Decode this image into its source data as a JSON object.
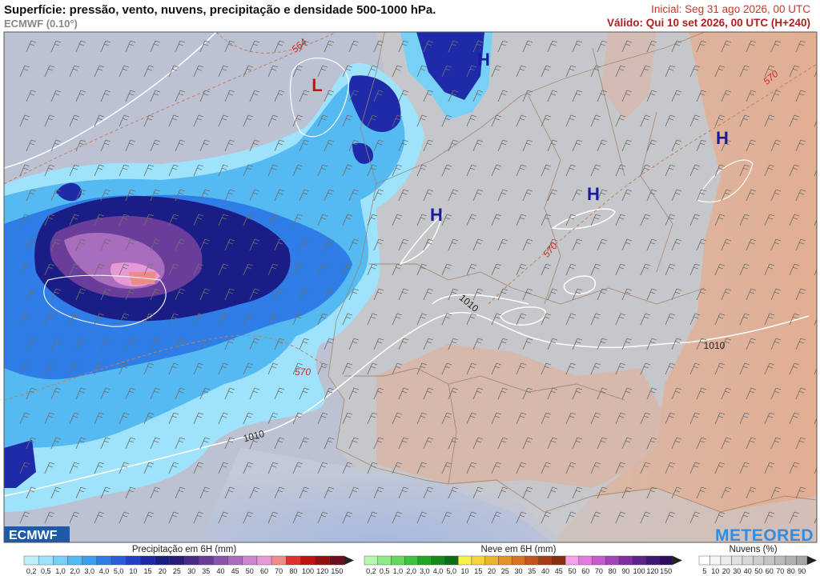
{
  "header": {
    "title": "Superfície: pressão, vento, nuvens, precipitação e densidade 500-1000 hPa.",
    "subtitle": "ECMWF (0.10°)",
    "initial": "Inicial: Seg 31 ago 2026, 00 UTC",
    "valid": "Válido: Qui 10 set 2026, 00 UTC (H+240)"
  },
  "map": {
    "pressure_centers": [
      "H",
      "H",
      "H",
      "H",
      "L"
    ],
    "isoline_labels": [
      "564",
      "570",
      "570",
      "570",
      "1010",
      "1010",
      "1010"
    ],
    "logos": [
      "ECMWF",
      "METEORED"
    ]
  },
  "legends": [
    {
      "title": "Precipitação em 6H (mm)",
      "labels": [
        "0,2",
        "0,5",
        "1,0",
        "2,0",
        "3,0",
        "4,0",
        "5,0",
        "10",
        "15",
        "20",
        "25",
        "30",
        "35",
        "40",
        "45",
        "50",
        "60",
        "70",
        "80",
        "100",
        "120",
        "150"
      ],
      "colors": [
        "#bfeffd",
        "#9ee3fb",
        "#77d1f7",
        "#55b9f2",
        "#3c9ced",
        "#2f7de6",
        "#2a5fd9",
        "#2540c4",
        "#1f2aa8",
        "#1b1d86",
        "#2b1b78",
        "#4a2b8a",
        "#6b3d9a",
        "#8a55ab",
        "#a86dbc",
        "#c987cc",
        "#e59ad6",
        "#f08a8a",
        "#e03030",
        "#c01414",
        "#941010",
        "#6a1020"
      ]
    },
    {
      "title": "Neve em 6H (mm)",
      "labels": [
        "0,2",
        "0,5",
        "1,0",
        "2,0",
        "3,0",
        "4,0",
        "5,0",
        "10",
        "15",
        "20",
        "25",
        "30",
        "35",
        "40",
        "45",
        "50",
        "60",
        "70",
        "80",
        "90",
        "100",
        "120",
        "150"
      ],
      "colors": [
        "#b7f5b0",
        "#8fe88a",
        "#63d85e",
        "#3cc43a",
        "#22a625",
        "#178a1c",
        "#0f6d15",
        "#f7f24a",
        "#f4d43a",
        "#efb42e",
        "#e59326",
        "#d67220",
        "#c2561a",
        "#a63f16",
        "#8a2d12",
        "#f2a4ea",
        "#e07ddc",
        "#c55ccb",
        "#a444b9",
        "#8030a4",
        "#5e228c",
        "#401878",
        "#2a0f5e"
      ]
    },
    {
      "title": "Nuvens (%)",
      "labels": [
        "5",
        "10",
        "20",
        "30",
        "40",
        "50",
        "60",
        "70",
        "80",
        "90"
      ],
      "colors": [
        "#ffffff",
        "#f6f6f6",
        "#ececec",
        "#e2e2e2",
        "#d8d8d8",
        "#cecece",
        "#c4c4c4",
        "#bababa",
        "#b0b0b0",
        "#a6a6a6"
      ]
    }
  ]
}
